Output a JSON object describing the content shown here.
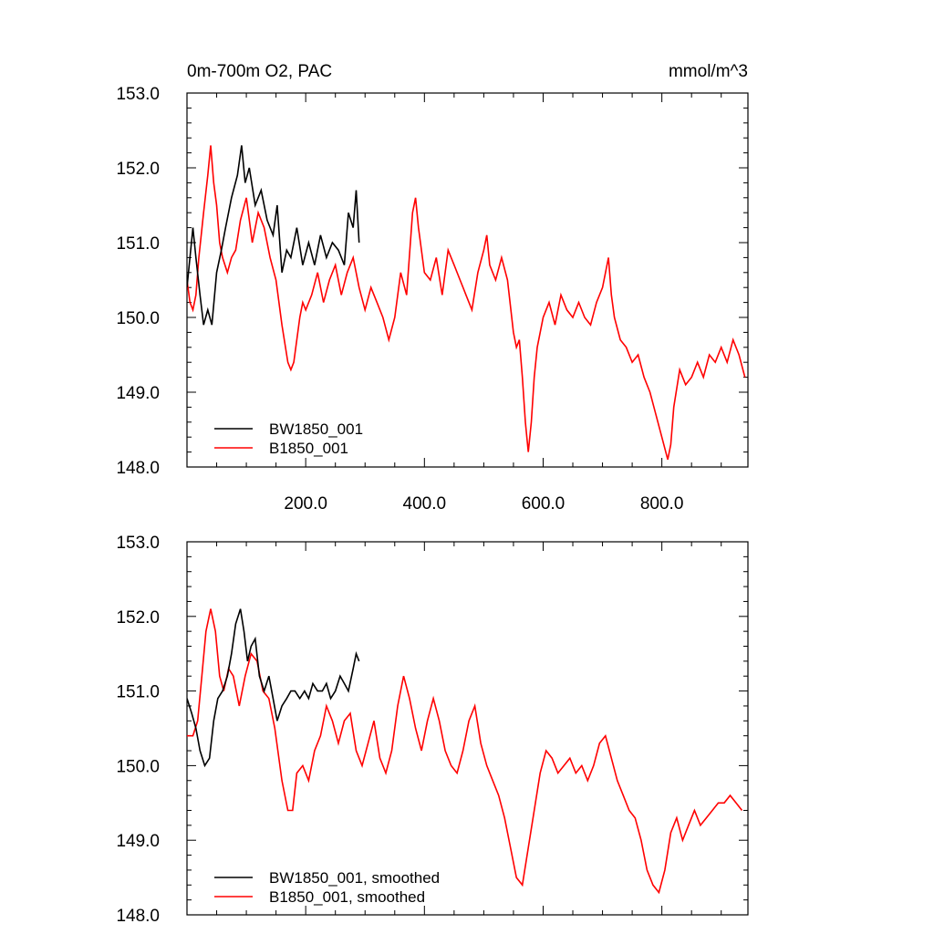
{
  "chart_data": [
    {
      "type": "line",
      "title": "0m-700m O2, PAC",
      "units": "mmol/m^3",
      "xlim": [
        0,
        945
      ],
      "ylim": [
        148.0,
        153.0
      ],
      "yticks": [
        "148.0",
        "149.0",
        "150.0",
        "151.0",
        "152.0",
        "153.0"
      ],
      "xticks": [
        "200.0",
        "400.0",
        "600.0",
        "800.0"
      ],
      "legend_position": "bottom-left",
      "series": [
        {
          "name": "BW1850_001",
          "color": "#000000",
          "x": [
            0,
            10,
            15,
            22,
            28,
            35,
            42,
            50,
            58,
            65,
            75,
            85,
            92,
            98,
            105,
            115,
            125,
            135,
            145,
            152,
            160,
            168,
            175,
            185,
            195,
            205,
            215,
            225,
            235,
            245,
            255,
            265,
            272,
            280,
            285,
            290
          ],
          "y": [
            150.4,
            151.2,
            150.8,
            150.3,
            149.9,
            150.1,
            149.9,
            150.6,
            150.9,
            151.2,
            151.6,
            151.9,
            152.3,
            151.8,
            152.0,
            151.5,
            151.7,
            151.3,
            151.1,
            151.5,
            150.6,
            150.9,
            150.8,
            151.2,
            150.7,
            151.0,
            150.7,
            151.1,
            150.8,
            151.0,
            150.9,
            150.7,
            151.4,
            151.2,
            151.7,
            151.0
          ]
        },
        {
          "name": "B1850_001",
          "color": "#ff0000",
          "x": [
            0,
            5,
            10,
            15,
            20,
            28,
            35,
            40,
            45,
            50,
            55,
            60,
            68,
            75,
            82,
            90,
            100,
            110,
            120,
            130,
            140,
            150,
            160,
            170,
            175,
            180,
            185,
            190,
            195,
            200,
            210,
            220,
            230,
            240,
            250,
            260,
            270,
            280,
            290,
            300,
            310,
            320,
            330,
            340,
            350,
            360,
            370,
            380,
            385,
            390,
            400,
            410,
            420,
            430,
            440,
            450,
            460,
            470,
            480,
            490,
            500,
            505,
            510,
            520,
            530,
            540,
            550,
            555,
            560,
            565,
            570,
            575,
            580,
            585,
            590,
            600,
            610,
            620,
            630,
            640,
            650,
            660,
            670,
            680,
            690,
            700,
            710,
            715,
            720,
            730,
            740,
            750,
            760,
            770,
            780,
            790,
            800,
            810,
            815,
            820,
            830,
            840,
            850,
            860,
            870,
            880,
            890,
            900,
            910,
            920,
            930,
            940
          ],
          "y": [
            150.5,
            150.2,
            150.1,
            150.3,
            150.8,
            151.4,
            151.9,
            152.3,
            151.8,
            151.5,
            151.0,
            150.8,
            150.6,
            150.8,
            150.9,
            151.3,
            151.6,
            151.0,
            151.4,
            151.2,
            150.8,
            150.5,
            149.9,
            149.4,
            149.3,
            149.4,
            149.7,
            150.0,
            150.2,
            150.1,
            150.3,
            150.6,
            150.2,
            150.5,
            150.7,
            150.3,
            150.6,
            150.8,
            150.4,
            150.1,
            150.4,
            150.2,
            150.0,
            149.7,
            150.0,
            150.6,
            150.3,
            151.4,
            151.6,
            151.2,
            150.6,
            150.5,
            150.8,
            150.3,
            150.9,
            150.7,
            150.5,
            150.3,
            150.1,
            150.6,
            150.9,
            151.1,
            150.7,
            150.5,
            150.8,
            150.5,
            149.8,
            149.6,
            149.7,
            149.2,
            148.6,
            148.2,
            148.6,
            149.2,
            149.6,
            150.0,
            150.2,
            149.9,
            150.3,
            150.1,
            150.0,
            150.2,
            150.0,
            149.9,
            150.2,
            150.4,
            150.8,
            150.3,
            150.0,
            149.7,
            149.6,
            149.4,
            149.5,
            149.2,
            149.0,
            148.7,
            148.4,
            148.1,
            148.3,
            148.8,
            149.3,
            149.1,
            149.2,
            149.4,
            149.2,
            149.5,
            149.4,
            149.6,
            149.4,
            149.7,
            149.5,
            149.2
          ]
        }
      ]
    },
    {
      "type": "line",
      "title": "",
      "xlim": [
        0,
        945
      ],
      "ylim": [
        148.0,
        153.0
      ],
      "yticks": [
        "148.0",
        "149.0",
        "150.0",
        "151.0",
        "152.0",
        "153.0"
      ],
      "legend_position": "bottom-left",
      "series": [
        {
          "name": "BW1850_001, smoothed",
          "color": "#000000",
          "x": [
            0,
            8,
            15,
            22,
            30,
            38,
            45,
            52,
            60,
            68,
            75,
            82,
            90,
            96,
            102,
            108,
            115,
            122,
            130,
            138,
            145,
            152,
            160,
            168,
            175,
            182,
            190,
            198,
            205,
            212,
            220,
            228,
            235,
            242,
            250,
            258,
            265,
            272,
            280,
            285,
            290
          ],
          "y": [
            150.9,
            150.7,
            150.5,
            150.2,
            150.0,
            150.1,
            150.6,
            150.9,
            151.0,
            151.2,
            151.5,
            151.9,
            152.1,
            151.8,
            151.4,
            151.6,
            151.7,
            151.2,
            151.0,
            151.2,
            150.9,
            150.6,
            150.8,
            150.9,
            151.0,
            151.0,
            150.9,
            151.0,
            150.9,
            151.1,
            151.0,
            151.0,
            151.1,
            150.9,
            151.0,
            151.2,
            151.1,
            151.0,
            151.3,
            151.5,
            151.4
          ]
        },
        {
          "name": "B1850_001, smoothed",
          "color": "#ff0000",
          "x": [
            0,
            10,
            18,
            25,
            32,
            40,
            48,
            55,
            62,
            70,
            78,
            88,
            98,
            108,
            118,
            128,
            138,
            148,
            160,
            170,
            178,
            185,
            195,
            205,
            215,
            225,
            235,
            245,
            255,
            265,
            275,
            285,
            295,
            305,
            315,
            325,
            335,
            345,
            355,
            365,
            375,
            385,
            395,
            405,
            415,
            425,
            435,
            445,
            455,
            465,
            475,
            485,
            495,
            505,
            515,
            525,
            535,
            545,
            555,
            565,
            575,
            585,
            595,
            605,
            615,
            625,
            635,
            645,
            655,
            665,
            675,
            685,
            695,
            705,
            715,
            725,
            735,
            745,
            755,
            765,
            775,
            785,
            795,
            805,
            815,
            825,
            835,
            845,
            855,
            865,
            875,
            885,
            895,
            905,
            915,
            925,
            935
          ],
          "y": [
            150.4,
            150.4,
            150.6,
            151.2,
            151.8,
            152.1,
            151.8,
            151.2,
            151.0,
            151.3,
            151.2,
            150.8,
            151.2,
            151.5,
            151.4,
            151.0,
            150.9,
            150.5,
            149.8,
            149.4,
            149.4,
            149.9,
            150.0,
            149.8,
            150.2,
            150.4,
            150.8,
            150.6,
            150.3,
            150.6,
            150.7,
            150.2,
            150.0,
            150.3,
            150.6,
            150.1,
            149.9,
            150.2,
            150.8,
            151.2,
            150.9,
            150.5,
            150.2,
            150.6,
            150.9,
            150.6,
            150.2,
            150.0,
            149.9,
            150.2,
            150.6,
            150.8,
            150.3,
            150.0,
            149.8,
            149.6,
            149.3,
            148.9,
            148.5,
            148.4,
            148.9,
            149.4,
            149.9,
            150.2,
            150.1,
            149.9,
            150.0,
            150.1,
            149.9,
            150.0,
            149.8,
            150.0,
            150.3,
            150.4,
            150.1,
            149.8,
            149.6,
            149.4,
            149.3,
            149.0,
            148.6,
            148.4,
            148.3,
            148.6,
            149.1,
            149.3,
            149.0,
            149.2,
            149.4,
            149.2,
            149.3,
            149.4,
            149.5,
            149.5,
            149.6,
            149.5,
            149.4
          ]
        }
      ]
    }
  ]
}
